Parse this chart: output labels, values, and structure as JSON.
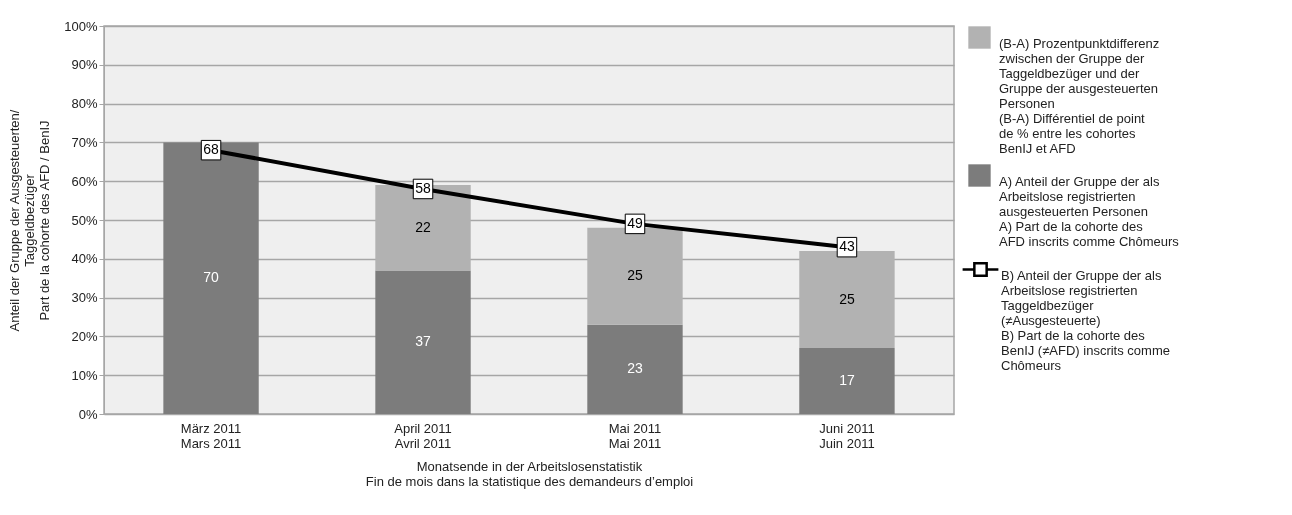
{
  "chart_data": {
    "type": "bar",
    "stacked": true,
    "categories": [
      "März 2011\nMars 2011",
      "April 2011\nAvril 2011",
      "Mai 2011\nMai 2011",
      "Juni 2011\nJuin 2011"
    ],
    "xlabel": "Monatsende in der Arbeitslosenstatistik\nFin de mois dans la statistique des demandeurs d’emploi",
    "ylabel": "Anteil der Gruppe der Ausgesteuerten/\nTaggeldbezüger\nPart de la cohorte des AFD / BenIJ",
    "series": [
      {
        "name": "A) Anteil der Gruppe der als Arbeitslose registrierten ausgesteuerten Personen\nA) Part de la cohorte des AFD inscrits comme Chômeurs",
        "color": "#7c7c7c",
        "values": [
          70,
          37,
          23,
          17
        ]
      },
      {
        "name": "(B-A) Prozentpunktdifferenz zwischen der Gruppe der Taggeldbezüger und der Gruppe der ausgesteuerten Personen\n(B-A) Différentiel de point de % entre les cohortes BenIJ et AFD",
        "color": "#b2b2b2",
        "values": [
          null,
          22,
          25,
          25
        ]
      },
      {
        "name": "B) Anteil der Gruppe der als Arbeitslose registrierten Taggeldbezüger (≠Ausgesteuerte)\nB) Part de la cohorte des BenIJ (≠AFD) inscrits comme Chômeurs",
        "type": "line",
        "color": "#000000",
        "values": [
          68,
          58,
          49,
          43
        ]
      }
    ],
    "ylim": [
      0,
      100
    ],
    "yticks": [
      {
        "value": 0,
        "label": "0%"
      },
      {
        "value": 10,
        "label": "10%"
      },
      {
        "value": 20,
        "label": "20%"
      },
      {
        "value": 30,
        "label": "30%"
      },
      {
        "value": 40,
        "label": "40%"
      },
      {
        "value": 50,
        "label": "50%"
      },
      {
        "value": 60,
        "label": "60%"
      },
      {
        "value": 70,
        "label": "70%"
      },
      {
        "value": 80,
        "label": "80%"
      },
      {
        "value": 90,
        "label": "90%"
      },
      {
        "value": 100,
        "label": "100%"
      }
    ],
    "grid": "y",
    "legend": "right",
    "marker": "square",
    "line_style": "solid",
    "data_labels": true
  }
}
